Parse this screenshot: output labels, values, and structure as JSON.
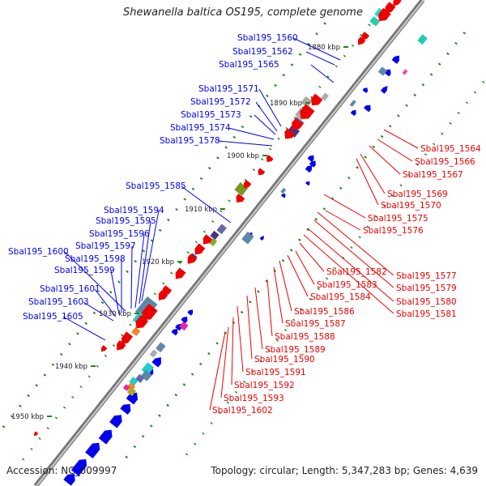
{
  "title": "Shewanella baltica OS195, complete genome",
  "footer": {
    "accession": "Accession: NC_009997",
    "summary": "Topology: circular; Length: 5,347,283 bp; Genes: 4,639"
  },
  "colors": {
    "forward": "#0000ee",
    "reverse": "#ee0000",
    "backbone": "#777777",
    "tick": "#1a8a1a",
    "text": "#222222"
  },
  "ticks": [
    "1880 kbp",
    "1890 kbp",
    "1900 kbp",
    "1910 kbp",
    "1920 kbp",
    "1930 kbp",
    "1940 kbp",
    "1950 kbp"
  ],
  "forward_labels": [
    "Sbal195_1560",
    "Sbal195_1562",
    "Sbal195_1565",
    "Sbal195_1571",
    "Sbal195_1572",
    "Sbal195_1573",
    "Sbal195_1574",
    "Sbal195_1578",
    "Sbal195_1585",
    "Sbal195_1594",
    "Sbal195_1595",
    "Sbal195_1596",
    "Sbal195_1597",
    "Sbal195_1600",
    "Sbal195_1598",
    "Sbal195_1599",
    "Sbal195_1601",
    "Sbal195_1603",
    "Sbal195_1605"
  ],
  "reverse_labels": [
    "Sbal195_1564",
    "Sbal195_1566",
    "Sbal195_1567",
    "Sbal195_1569",
    "Sbal195_1570",
    "Sbal195_1575",
    "Sbal195_1576",
    "Sbal195_1577",
    "Sbal195_1579",
    "Sbal195_1580",
    "Sbal195_1581",
    "Sbal195_1582",
    "Sbal195_1583",
    "Sbal195_1584",
    "Sbal195_1586",
    "Sbal195_1587",
    "Sbal195_1588",
    "Sbal195_1589",
    "Sbal195_1590",
    "Sbal195_1591",
    "Sbal195_1592",
    "Sbal195_1593",
    "Sbal195_1602"
  ]
}
